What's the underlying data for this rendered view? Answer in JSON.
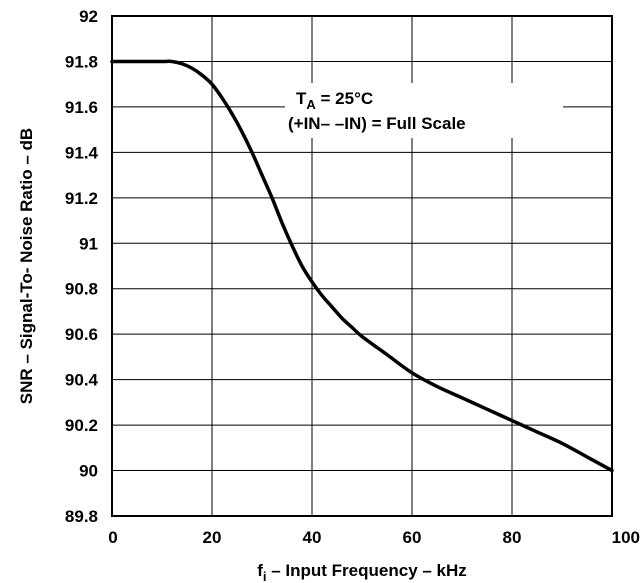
{
  "chart_data": {
    "type": "line",
    "xlabel": "f",
    "xlabel_subscript": "i",
    "xlabel_rest": " – Input Frequency – kHz",
    "ylabel": "SNR – Signal-To- Noise Ratio – dB",
    "xlim": [
      0,
      100
    ],
    "ylim": [
      89.8,
      92
    ],
    "x_ticks": [
      "0",
      "20",
      "40",
      "60",
      "80",
      "100"
    ],
    "x_tick_values": [
      0,
      20,
      40,
      60,
      80,
      100
    ],
    "y_ticks": [
      "92",
      "91.8",
      "91.6",
      "91.4",
      "91.2",
      "91",
      "90.8",
      "90.6",
      "90.4",
      "90.2",
      "90",
      "89.8"
    ],
    "y_tick_values": [
      92,
      91.8,
      91.6,
      91.4,
      91.2,
      91,
      90.8,
      90.6,
      90.4,
      90.2,
      90,
      89.8
    ],
    "grid": true,
    "annotation": {
      "line1_main": "T",
      "line1_sub": "A",
      "line1_rest": " = 25°C",
      "line2": "(+IN– –IN) = Full Scale"
    },
    "series": [
      {
        "x": [
          0,
          5,
          10,
          12,
          14,
          16,
          18,
          20,
          22,
          24,
          26,
          28,
          30,
          32,
          34,
          36,
          38,
          40,
          42,
          44,
          46,
          48,
          50,
          55,
          60,
          65,
          70,
          75,
          80,
          85,
          90,
          95,
          100
        ],
        "y": [
          91.8,
          91.8,
          91.8,
          91.8,
          91.79,
          91.77,
          91.74,
          91.7,
          91.64,
          91.57,
          91.49,
          91.4,
          91.3,
          91.2,
          91.09,
          90.99,
          90.9,
          90.83,
          90.77,
          90.72,
          90.67,
          90.63,
          90.59,
          90.51,
          90.43,
          90.37,
          90.32,
          90.27,
          90.22,
          90.17,
          90.12,
          90.06,
          90.0
        ]
      }
    ]
  }
}
